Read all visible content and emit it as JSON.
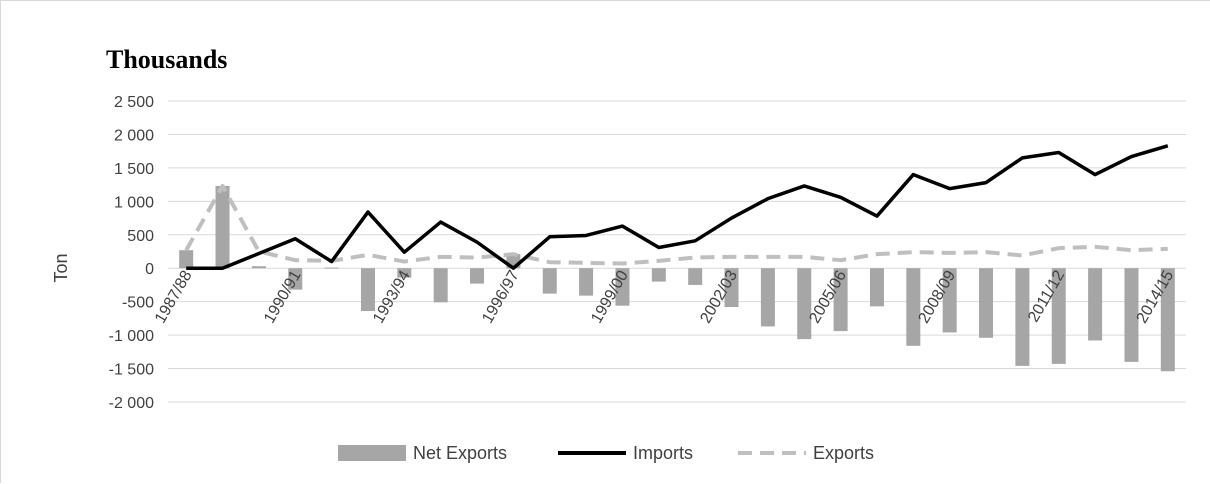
{
  "chart_data": {
    "type": "bar",
    "title": "Thousands",
    "ylabel": "Ton",
    "xlabel": "",
    "ylim": [
      -2000,
      2500
    ],
    "yticks": [
      2500,
      2000,
      1500,
      1000,
      500,
      0,
      -500,
      -1000,
      -1500,
      -2000
    ],
    "ytick_labels": [
      "2 500",
      "2 000",
      "1 500",
      "1 000",
      "500",
      "0",
      "-500",
      "-1 000",
      "-1 500",
      "-2 000"
    ],
    "grid": true,
    "legend_position": "bottom",
    "categories": [
      "1987/88",
      "1988/89",
      "1989/90",
      "1990/91",
      "1991/92",
      "1992/93",
      "1993/94",
      "1994/95",
      "1995/96",
      "1996/97",
      "1997/98",
      "1998/99",
      "1999/00",
      "2000/01",
      "2001/02",
      "2002/03",
      "2003/04",
      "2004/05",
      "2005/06",
      "2006/07",
      "2007/08",
      "2008/09",
      "2009/10",
      "2010/11",
      "2011/12",
      "2012/13",
      "2013/14",
      "2014/15"
    ],
    "visible_tick_labels": [
      "1987/88",
      "1990/91",
      "1993/94",
      "1996/97",
      "1999/00",
      "2002/03",
      "2005/06",
      "2008/09",
      "2011/12",
      "2014/15"
    ],
    "series": [
      {
        "name": "Net Exports",
        "type": "bar",
        "color": "#a6a6a6",
        "values": [
          270,
          1230,
          30,
          -320,
          10,
          -640,
          -140,
          -510,
          -230,
          210,
          -380,
          -410,
          -560,
          -200,
          -250,
          -580,
          -870,
          -1060,
          -940,
          -570,
          -1160,
          -960,
          -1040,
          -1460,
          -1430,
          -1080,
          -1400,
          -1540
        ]
      },
      {
        "name": "Imports",
        "type": "line",
        "color": "#000000",
        "style": "solid",
        "values": [
          0,
          0,
          220,
          440,
          100,
          840,
          240,
          690,
          390,
          0,
          470,
          490,
          630,
          310,
          410,
          750,
          1040,
          1230,
          1060,
          780,
          1400,
          1190,
          1280,
          1650,
          1730,
          1400,
          1670,
          1830
        ]
      },
      {
        "name": "Exports",
        "type": "line",
        "color": "#bfbfbf",
        "style": "dashed",
        "values": [
          270,
          1230,
          250,
          120,
          110,
          200,
          100,
          170,
          160,
          210,
          90,
          80,
          70,
          110,
          160,
          170,
          170,
          170,
          120,
          210,
          240,
          230,
          240,
          190,
          300,
          320,
          270,
          290
        ]
      }
    ]
  }
}
